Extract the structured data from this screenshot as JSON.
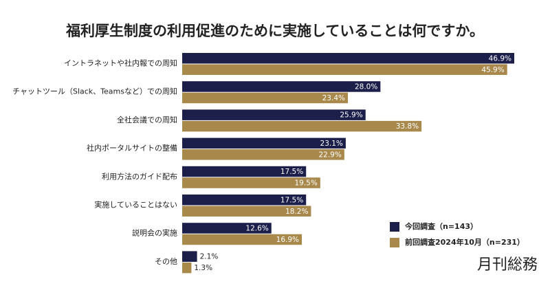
{
  "chart_data": {
    "type": "grouped-hbar",
    "title": "福利厚生制度の利用促進のために実施していることは何ですか。",
    "categories": [
      "イントラネットや社内報での周知",
      "チャットツール（Slack、Teamsなど）での周知",
      "全社会議での周知",
      "社内ポータルサイトの整備",
      "利用方法のガイド配布",
      "実施していることはない",
      "説明会の実施",
      "その他"
    ],
    "series": [
      {
        "name": "今回調査（n=143）",
        "color": "#1b1f4a",
        "values": [
          46.9,
          28.0,
          25.9,
          23.1,
          17.5,
          17.5,
          12.6,
          2.1
        ],
        "value_labels": [
          "46.9%",
          "28.0%",
          "25.9%",
          "23.1%",
          "17.5%",
          "17.5%",
          "12.6%",
          "2.1%"
        ]
      },
      {
        "name": "前回調査2024年10月（n=231）",
        "color": "#a8894b",
        "values": [
          45.9,
          23.4,
          33.8,
          22.9,
          19.5,
          18.2,
          16.9,
          1.3
        ],
        "value_labels": [
          "45.9%",
          "23.4%",
          "33.8%",
          "22.9%",
          "19.5%",
          "18.2%",
          "16.9%",
          "1.3%"
        ]
      }
    ],
    "legend": "lower-right"
  },
  "brand": "月刊総務"
}
